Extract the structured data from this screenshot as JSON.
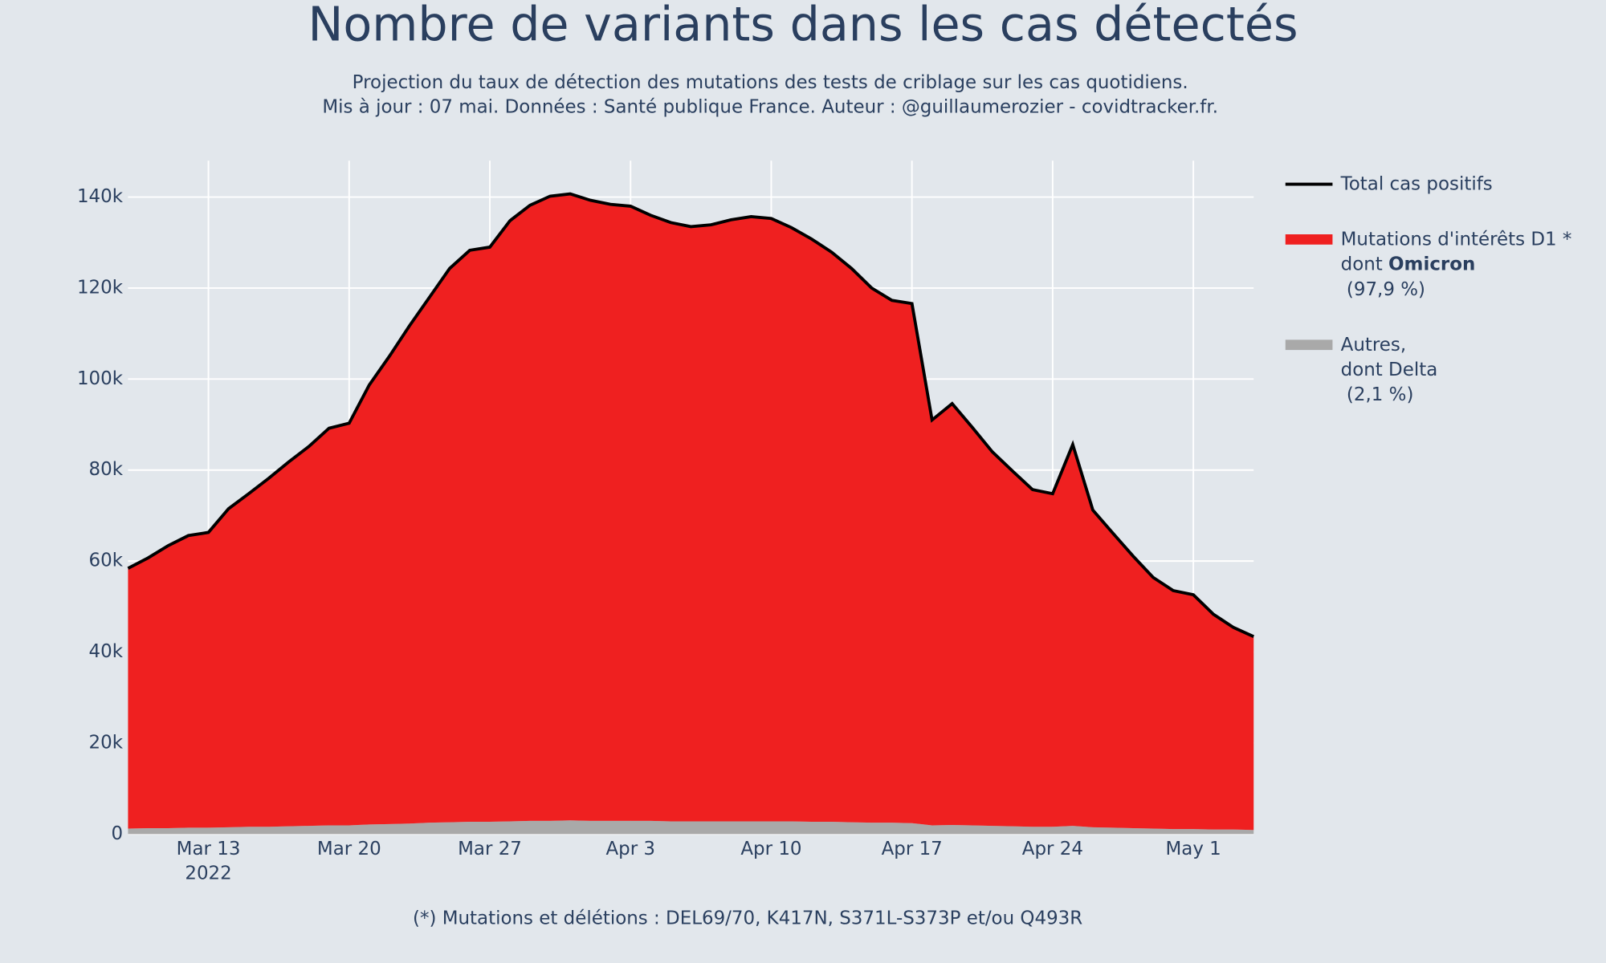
{
  "chart_data": {
    "type": "stacked_area",
    "title": "Nombre de variants dans les cas détectés",
    "subtitle": [
      "Projection du taux de détection des mutations des tests de criblage sur les cas quotidiens.",
      "Mis à jour : 07 mai. Données : Santé publique France. Auteur : @guillaumerozier - covidtracker.fr."
    ],
    "footnote": "(*) Mutations et délétions : DEL69/70, K417N, S371L-S373P et/ou Q493R",
    "x": [
      "2022-03-09",
      "2022-03-10",
      "2022-03-11",
      "2022-03-12",
      "2022-03-13",
      "2022-03-14",
      "2022-03-15",
      "2022-03-16",
      "2022-03-17",
      "2022-03-18",
      "2022-03-19",
      "2022-03-20",
      "2022-03-21",
      "2022-03-22",
      "2022-03-23",
      "2022-03-24",
      "2022-03-25",
      "2022-03-26",
      "2022-03-27",
      "2022-03-28",
      "2022-03-29",
      "2022-03-30",
      "2022-03-31",
      "2022-04-01",
      "2022-04-02",
      "2022-04-03",
      "2022-04-04",
      "2022-04-05",
      "2022-04-06",
      "2022-04-07",
      "2022-04-08",
      "2022-04-09",
      "2022-04-10",
      "2022-04-11",
      "2022-04-12",
      "2022-04-13",
      "2022-04-14",
      "2022-04-15",
      "2022-04-16",
      "2022-04-17",
      "2022-04-18",
      "2022-04-19",
      "2022-04-20",
      "2022-04-21",
      "2022-04-22",
      "2022-04-23",
      "2022-04-24",
      "2022-04-25",
      "2022-04-26",
      "2022-04-27",
      "2022-04-28",
      "2022-04-29",
      "2022-04-30",
      "2022-05-01",
      "2022-05-02",
      "2022-05-03",
      "2022-05-04"
    ],
    "xlim": [
      "2022-03-09",
      "2022-05-04"
    ],
    "xticks": [
      {
        "value": "2022-03-13",
        "label": "Mar 13"
      },
      {
        "value": "2022-03-20",
        "label": "Mar 20"
      },
      {
        "value": "2022-03-27",
        "label": "Mar 27"
      },
      {
        "value": "2022-04-03",
        "label": "Apr 3"
      },
      {
        "value": "2022-04-10",
        "label": "Apr 10"
      },
      {
        "value": "2022-04-17",
        "label": "Apr 17"
      },
      {
        "value": "2022-04-24",
        "label": "Apr 24"
      },
      {
        "value": "2022-05-01",
        "label": "May 1"
      }
    ],
    "x_year_label": "2022",
    "ylim": [
      0,
      148000
    ],
    "yticks": [
      0,
      {
        "value": 20000,
        "label": "20k"
      },
      {
        "value": 40000,
        "label": "40k"
      },
      {
        "value": 60000,
        "label": "60k"
      },
      {
        "value": 80000,
        "label": "80k"
      },
      {
        "value": 100000,
        "label": "100k"
      },
      {
        "value": 120000,
        "label": "120k"
      },
      {
        "value": 140000,
        "label": "140k"
      }
    ],
    "grid": true,
    "series": [
      {
        "name": "Autres,\ndont Delta\n (2,1 %)",
        "color": "#a9a9a9",
        "stack": true,
        "values": [
          1200,
          1300,
          1300,
          1400,
          1400,
          1500,
          1600,
          1600,
          1700,
          1800,
          1900,
          1900,
          2100,
          2200,
          2300,
          2500,
          2600,
          2700,
          2700,
          2800,
          2900,
          2900,
          3000,
          2900,
          2900,
          2900,
          2900,
          2800,
          2800,
          2800,
          2800,
          2800,
          2800,
          2800,
          2700,
          2700,
          2600,
          2500,
          2500,
          2400,
          1900,
          2000,
          1900,
          1800,
          1700,
          1600,
          1600,
          1800,
          1500,
          1400,
          1300,
          1200,
          1100,
          1100,
          1000,
          1000,
          900
        ]
      },
      {
        "name": "Mutations d'intérêts D1   *\ndont Omicron\n (97,9 %)",
        "color": "#ef2020",
        "stack": true,
        "values": [
          57200,
          59400,
          62100,
          64200,
          64900,
          70000,
          73200,
          76600,
          80100,
          83400,
          87300,
          88400,
          96600,
          102800,
          109400,
          115500,
          121700,
          125600,
          126300,
          132000,
          135300,
          137300,
          137700,
          136400,
          135500,
          135100,
          133100,
          131600,
          130700,
          131100,
          132200,
          132900,
          132500,
          130500,
          128100,
          125200,
          121700,
          117500,
          114800,
          114200,
          89100,
          92600,
          87500,
          82200,
          78100,
          74100,
          73200,
          83800,
          69700,
          64700,
          59800,
          55200,
          52400,
          51500,
          47300,
          44400,
          42500
        ]
      },
      {
        "name": "Total cas positifs",
        "color": "#000000",
        "stack": false,
        "values": [
          58400,
          60700,
          63400,
          65600,
          66300,
          71500,
          74800,
          78200,
          81800,
          85200,
          89200,
          90300,
          98700,
          105000,
          111700,
          118000,
          124300,
          128300,
          129000,
          134800,
          138200,
          140200,
          140700,
          139300,
          138400,
          138000,
          136000,
          134400,
          133500,
          133900,
          135000,
          135700,
          135300,
          133300,
          130800,
          127900,
          124300,
          120000,
          117300,
          116600,
          91000,
          94600,
          89400,
          84000,
          79800,
          75700,
          74800,
          85600,
          71200,
          66100,
          61100,
          56400,
          53500,
          52600,
          48300,
          45400,
          43400
        ]
      }
    ],
    "legend_order": [
      2,
      1,
      0
    ],
    "bold_word": "Omicron"
  }
}
